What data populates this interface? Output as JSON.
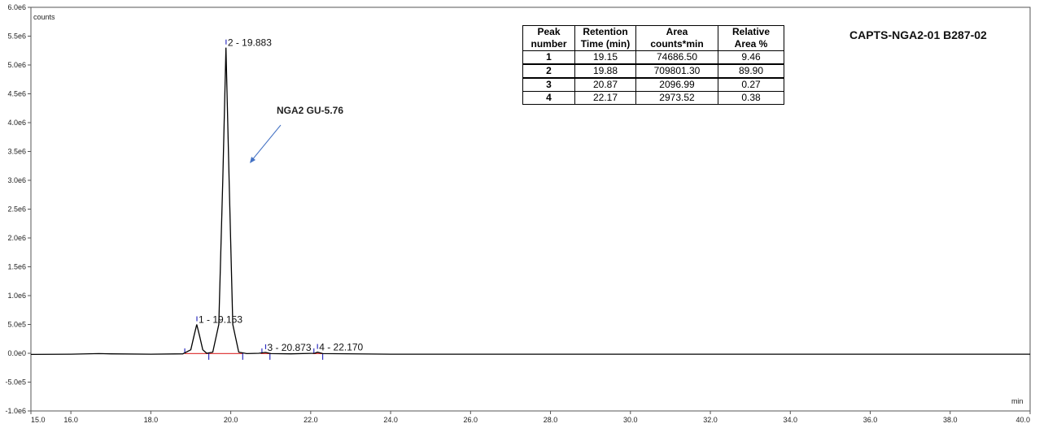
{
  "chart_data": {
    "type": "line",
    "title": "CAPTS-NGA2-01  B287-02",
    "ylabel": "counts",
    "xlabel": "min",
    "xlim": [
      15.0,
      40.0
    ],
    "ylim": [
      -1000000,
      6000000
    ],
    "x_ticks": [
      "15.0",
      "16.0",
      "18.0",
      "20.0",
      "22.0",
      "24.0",
      "26.0",
      "28.0",
      "30.0",
      "32.0",
      "34.0",
      "36.0",
      "38.0",
      "40.0"
    ],
    "x_tick_values": [
      15,
      16,
      18,
      20,
      22,
      24,
      26,
      28,
      30,
      32,
      34,
      36,
      38,
      40
    ],
    "y_ticks": [
      "6.0e6",
      "5.5e6",
      "5.0e6",
      "4.5e6",
      "4.0e6",
      "3.5e6",
      "3.0e6",
      "2.5e6",
      "2.0e6",
      "1.5e6",
      "1.0e6",
      "5.0e5",
      "0.0e0",
      "-5.0e5",
      "-1.0e6"
    ],
    "y_tick_values": [
      6000000,
      5500000,
      5000000,
      4500000,
      4000000,
      3500000,
      3000000,
      2500000,
      2000000,
      1500000,
      1000000,
      500000,
      0,
      -500000,
      -1000000
    ],
    "series": [
      {
        "color": "#000000",
        "points": [
          [
            15.0,
            -20000
          ],
          [
            16.0,
            -15000
          ],
          [
            16.7,
            -5000
          ],
          [
            17.0,
            -10000
          ],
          [
            18.0,
            -15000
          ],
          [
            18.8,
            -10000
          ],
          [
            19.0,
            60000
          ],
          [
            19.08,
            300000
          ],
          [
            19.15,
            500000
          ],
          [
            19.22,
            300000
          ],
          [
            19.3,
            60000
          ],
          [
            19.4,
            0
          ],
          [
            19.55,
            20000
          ],
          [
            19.7,
            500000
          ],
          [
            19.8,
            3000000
          ],
          [
            19.88,
            5300000
          ],
          [
            19.96,
            3000000
          ],
          [
            20.05,
            500000
          ],
          [
            20.2,
            20000
          ],
          [
            20.4,
            -5000
          ],
          [
            20.7,
            0
          ],
          [
            20.87,
            15000
          ],
          [
            21.0,
            -5000
          ],
          [
            21.5,
            -10000
          ],
          [
            22.1,
            0
          ],
          [
            22.17,
            20000
          ],
          [
            22.3,
            -5000
          ],
          [
            24.0,
            -15000
          ],
          [
            30.0,
            -15000
          ],
          [
            40.0,
            -15000
          ]
        ]
      }
    ],
    "peaks": [
      {
        "label": "1 - 19.153",
        "x": 19.153,
        "y": 500000
      },
      {
        "label": "2 - 19.883",
        "x": 19.883,
        "y": 5300000
      },
      {
        "label": "3 - 20.873",
        "x": 20.873,
        "y": 15000
      },
      {
        "label": "4 - 22.170",
        "x": 22.17,
        "y": 20000
      }
    ],
    "annotation": {
      "text": "NGA2 GU-5.76",
      "color": "#4472c4"
    },
    "table": {
      "headers": [
        "Peak number",
        "Retention Time (min)",
        "Area counts*min",
        "Relative Area %"
      ],
      "rows": [
        [
          "1",
          "19.15",
          "74686.50",
          "9.46"
        ],
        [
          "2",
          "19.88",
          "709801.30",
          "89.90"
        ],
        [
          "3",
          "20.87",
          "2096.99",
          "0.27"
        ],
        [
          "4",
          "22.17",
          "2973.52",
          "0.38"
        ]
      ]
    },
    "legend": "none",
    "grid": false
  }
}
